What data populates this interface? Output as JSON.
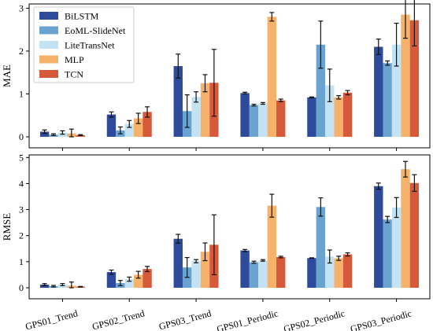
{
  "chart_data": [
    {
      "type": "bar",
      "ylabel": "MAE",
      "ylim": [
        0,
        3.1
      ],
      "yticks": [
        "0",
        "1",
        "2",
        "3"
      ],
      "categories": [
        "GPS01_Trend",
        "GPS02_Trend",
        "GPS03_Trend",
        "GPS01_Periodic",
        "GPS02_Periodic",
        "GPS03_Periodic"
      ],
      "legend_position": "top-left",
      "series": [
        {
          "name": "BiLSTM",
          "color": "#2e4b9b",
          "values": [
            0.12,
            0.52,
            1.65,
            1.02,
            0.92,
            2.1
          ],
          "errors": [
            0.04,
            0.06,
            0.28,
            0.02,
            0.01,
            0.18
          ]
        },
        {
          "name": "EoML-SlideNet",
          "color": "#6aa3d0",
          "values": [
            0.05,
            0.15,
            0.6,
            0.74,
            2.15,
            1.72
          ],
          "errors": [
            0.02,
            0.08,
            0.38,
            0.02,
            0.55,
            0.05
          ]
        },
        {
          "name": "LiteTransNet",
          "color": "#c4e3f2",
          "values": [
            0.1,
            0.3,
            0.93,
            0.78,
            1.2,
            2.15
          ],
          "errors": [
            0.04,
            0.08,
            0.12,
            0.02,
            0.38,
            0.5
          ]
        },
        {
          "name": "MLP",
          "color": "#f6b26b",
          "values": [
            0.08,
            0.43,
            1.25,
            2.8,
            0.92,
            2.85
          ],
          "errors": [
            0.1,
            0.12,
            0.2,
            0.1,
            0.04,
            0.55
          ]
        },
        {
          "name": "TCN",
          "color": "#d6593a",
          "values": [
            0.04,
            0.58,
            1.26,
            0.85,
            1.03,
            2.72
          ],
          "errors": [
            0.01,
            0.12,
            0.78,
            0.03,
            0.05,
            0.6
          ]
        }
      ]
    },
    {
      "type": "bar",
      "ylabel": "RMSE",
      "ylim": [
        0,
        5.1
      ],
      "yticks": [
        "0",
        "1",
        "2",
        "3",
        "4",
        "5"
      ],
      "categories": [
        "GPS01_Trend",
        "GPS02_Trend",
        "GPS03_Trend",
        "GPS01_Periodic",
        "GPS02_Periodic",
        "GPS03_Periodic"
      ],
      "series": [
        {
          "name": "BiLSTM",
          "color": "#2e4b9b",
          "values": [
            0.12,
            0.6,
            1.88,
            1.43,
            1.14,
            3.9
          ],
          "errors": [
            0.04,
            0.08,
            0.17,
            0.04,
            0.01,
            0.12
          ]
        },
        {
          "name": "EoML-SlideNet",
          "color": "#6aa3d0",
          "values": [
            0.06,
            0.18,
            0.78,
            0.98,
            3.1,
            2.62
          ],
          "errors": [
            0.03,
            0.1,
            0.38,
            0.04,
            0.35,
            0.12
          ]
        },
        {
          "name": "LiteTransNet",
          "color": "#c4e3f2",
          "values": [
            0.12,
            0.33,
            1.02,
            1.05,
            1.2,
            3.08
          ],
          "errors": [
            0.04,
            0.08,
            0.06,
            0.03,
            0.25,
            0.38
          ]
        },
        {
          "name": "MLP",
          "color": "#f6b26b",
          "values": [
            0.08,
            0.5,
            1.38,
            3.15,
            1.13,
            4.55
          ],
          "errors": [
            0.14,
            0.13,
            0.34,
            0.44,
            0.08,
            0.3
          ]
        },
        {
          "name": "TCN",
          "color": "#d6593a",
          "values": [
            0.04,
            0.72,
            1.65,
            1.18,
            1.28,
            4.02
          ],
          "errors": [
            0.01,
            0.1,
            1.15,
            0.03,
            0.06,
            0.32
          ]
        }
      ]
    }
  ]
}
